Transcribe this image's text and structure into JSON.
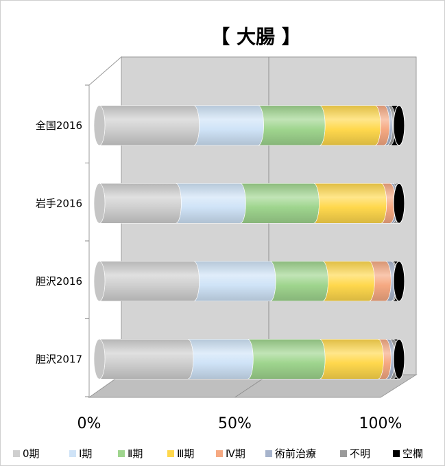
{
  "chart_data": {
    "type": "bar",
    "orientation": "horizontal",
    "stacked": "percent",
    "style": "3d-cylinder",
    "title": "【 大腸 】",
    "categories": [
      "全国2016",
      "岩手2016",
      "胆沢2016",
      "胆沢2017"
    ],
    "x_tick_labels": [
      "0%",
      "50%",
      "100%"
    ],
    "xlim": [
      0,
      100
    ],
    "grid": true,
    "legend_position": "bottom",
    "series": [
      {
        "name": "0期",
        "color": "#cfcfcf",
        "values": [
          31.5,
          25.5,
          31.5,
          29.5
        ]
      },
      {
        "name": "Ⅰ期",
        "color": "#cfe3f7",
        "values": [
          21.5,
          21.5,
          25.5,
          20.0
        ]
      },
      {
        "name": "Ⅱ期",
        "color": "#9fd58e",
        "values": [
          20.5,
          24.5,
          17.5,
          24.0
        ]
      },
      {
        "name": "Ⅲ期",
        "color": "#ffd84d",
        "values": [
          18.5,
          22.5,
          15.5,
          19.5
        ]
      },
      {
        "name": "Ⅳ期",
        "color": "#f6a982",
        "values": [
          3.0,
          3.0,
          5.5,
          2.5
        ]
      },
      {
        "name": "術前治療",
        "color": "#a7b4cc",
        "values": [
          1.0,
          0.8,
          1.8,
          1.2
        ]
      },
      {
        "name": "不明",
        "color": "#9a9a9a",
        "values": [
          1.0,
          0.9,
          0.5,
          1.3
        ]
      },
      {
        "name": "空欄",
        "color": "#000000",
        "values": [
          3.0,
          1.3,
          2.2,
          2.0
        ]
      }
    ]
  }
}
